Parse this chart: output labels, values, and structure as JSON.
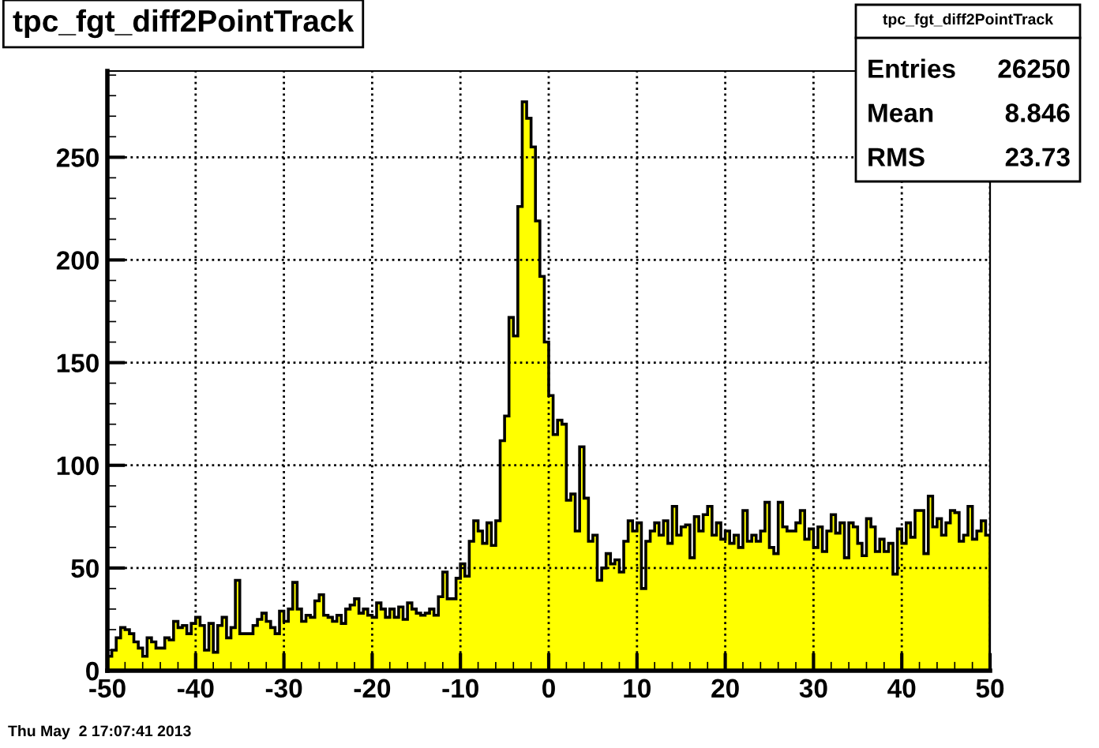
{
  "chart_data": {
    "type": "histogram",
    "title": "tpc_fgt_diff2PointTrack",
    "bins": [
      -50.0,
      -49.5,
      -49.0,
      -48.5,
      -48.0,
      -47.5,
      -47.0,
      -46.5,
      -46.0,
      -45.5,
      -45.0,
      -44.5,
      -44.0,
      -43.5,
      -43.0,
      -42.5,
      -42.0,
      -41.5,
      -41.0,
      -40.5,
      -40.0,
      -39.5,
      -39.0,
      -38.5,
      -38.0,
      -37.5,
      -37.0,
      -36.5,
      -36.0,
      -35.5,
      -35.0,
      -34.5,
      -34.0,
      -33.5,
      -33.0,
      -32.5,
      -32.0,
      -31.5,
      -31.0,
      -30.5,
      -30.0,
      -29.5,
      -29.0,
      -28.5,
      -28.0,
      -27.5,
      -27.0,
      -26.5,
      -26.0,
      -25.5,
      -25.0,
      -24.5,
      -24.0,
      -23.5,
      -23.0,
      -22.5,
      -22.0,
      -21.5,
      -21.0,
      -20.5,
      -20.0,
      -19.5,
      -19.0,
      -18.5,
      -18.0,
      -17.5,
      -17.0,
      -16.5,
      -16.0,
      -15.5,
      -15.0,
      -14.5,
      -14.0,
      -13.5,
      -13.0,
      -12.5,
      -12.0,
      -11.5,
      -11.0,
      -10.5,
      -10.0,
      -9.5,
      -9.0,
      -8.5,
      -8.0,
      -7.5,
      -7.0,
      -6.5,
      -6.0,
      -5.5,
      -5.0,
      -4.5,
      -4.0,
      -3.5,
      -3.0,
      -2.5,
      -2.0,
      -1.5,
      -1.0,
      -0.5,
      0.0,
      0.5,
      1.0,
      1.5,
      2.0,
      2.5,
      3.0,
      3.5,
      4.0,
      4.5,
      5.0,
      5.5,
      6.0,
      6.5,
      7.0,
      7.5,
      8.0,
      8.5,
      9.0,
      9.5,
      10.0,
      10.5,
      11.0,
      11.5,
      12.0,
      12.5,
      13.0,
      13.5,
      14.0,
      14.5,
      15.0,
      15.5,
      16.0,
      16.5,
      17.0,
      17.5,
      18.0,
      18.5,
      19.0,
      19.5,
      20.0,
      20.5,
      21.0,
      21.5,
      22.0,
      22.5,
      23.0,
      23.5,
      24.0,
      24.5,
      25.0,
      25.5,
      26.0,
      26.5,
      27.0,
      27.5,
      28.0,
      28.5,
      29.0,
      29.5,
      30.0,
      30.5,
      31.0,
      31.5,
      32.0,
      32.5,
      33.0,
      33.5,
      34.0,
      34.5,
      35.0,
      35.5,
      36.0,
      36.5,
      37.0,
      37.5,
      38.0,
      38.5,
      39.0,
      39.5,
      40.0,
      40.5,
      41.0,
      41.5,
      42.0,
      42.5,
      43.0,
      43.5,
      44.0,
      44.5,
      45.0,
      45.5,
      46.0,
      46.5,
      47.0,
      47.5,
      48.0,
      48.5,
      49.0,
      49.5,
      50.0
    ],
    "values": [
      7,
      10,
      16,
      21,
      20,
      18,
      14,
      11,
      7,
      16,
      14,
      11,
      11,
      16,
      15,
      24,
      21,
      22,
      18,
      23,
      26,
      22,
      10,
      23,
      9,
      22,
      26,
      16,
      21,
      44,
      18,
      18,
      18,
      22,
      25,
      28,
      24,
      21,
      18,
      29,
      24,
      30,
      43,
      30,
      24,
      27,
      26,
      34,
      37,
      27,
      26,
      24,
      27,
      23,
      30,
      32,
      35,
      28,
      30,
      27,
      26,
      33,
      30,
      26,
      30,
      26,
      31,
      25,
      33,
      30,
      28,
      27,
      28,
      30,
      27,
      36,
      48,
      35,
      35,
      45,
      52,
      46,
      63,
      73,
      68,
      62,
      72,
      61,
      73,
      112,
      124,
      172,
      163,
      226,
      277,
      269,
      255,
      219,
      192,
      160,
      134,
      115,
      122,
      120,
      83,
      86,
      68,
      109,
      84,
      63,
      66,
      44,
      50,
      57,
      52,
      54,
      48,
      63,
      73,
      68,
      72,
      40,
      63,
      68,
      72,
      66,
      73,
      62,
      80,
      66,
      70,
      71,
      55,
      75,
      68,
      76,
      80,
      66,
      72,
      64,
      68,
      62,
      66,
      60,
      78,
      63,
      66,
      63,
      68,
      82,
      60,
      57,
      82,
      70,
      68,
      68,
      72,
      78,
      64,
      69,
      60,
      70,
      58,
      68,
      76,
      67,
      72,
      55,
      72,
      70,
      62,
      56,
      74,
      70,
      58,
      64,
      58,
      62,
      47,
      69,
      62,
      72,
      65,
      78,
      78,
      57,
      85,
      70,
      74,
      66,
      72,
      78,
      77,
      63,
      66,
      80,
      64,
      68,
      73,
      66
    ],
    "color": "#ffff00",
    "xlim": [
      -50,
      50
    ],
    "ylim": [
      0,
      292
    ],
    "xticks": [
      -50,
      -40,
      -30,
      -20,
      -10,
      0,
      10,
      20,
      30,
      40,
      50
    ],
    "yticks": [
      0,
      50,
      100,
      150,
      200,
      250
    ],
    "grid": true,
    "annotations": [
      "tpc_fgt_diff2PointTrack",
      "Entries",
      "26250",
      "Mean",
      "8.846",
      "RMS",
      "23.73",
      "Thu May  2 17:07:41 2013"
    ]
  }
}
